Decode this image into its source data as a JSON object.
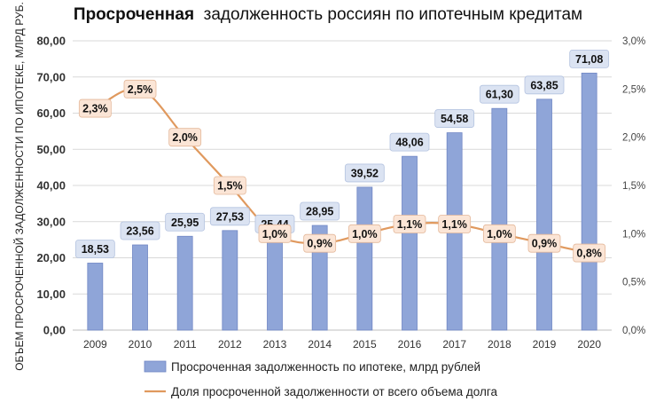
{
  "chart_data": {
    "type": "bar",
    "title_bold": "Просроченная",
    "title_rest": "задолженность россиян по ипотечным кредитам",
    "ylabel": "ОБЪЕМ ПРОСРОЧЕННОЙ ЗАДОЛЖЕННОСТИ ПО ИПОТЕКЕ, МЛРД РУБ.",
    "categories": [
      "2009",
      "2010",
      "2011",
      "2012",
      "2013",
      "2014",
      "2015",
      "2016",
      "2017",
      "2018",
      "2019",
      "2020"
    ],
    "series": [
      {
        "name": "Просроченная задолженность по ипотеке, млрд рублей",
        "type": "bar",
        "axis": "left",
        "values": [
          18.53,
          23.56,
          25.95,
          27.53,
          25.44,
          28.95,
          39.52,
          48.06,
          54.58,
          61.3,
          63.85,
          71.08
        ],
        "labels": [
          "18,53",
          "23,56",
          "25,95",
          "27,53",
          "25,44",
          "28,95",
          "39,52",
          "48,06",
          "54,58",
          "61,30",
          "63,85",
          "71,08"
        ],
        "color": "#8fa5d8"
      },
      {
        "name": "Доля просроченной задолженности от всего объема долга",
        "type": "line",
        "axis": "right",
        "values": [
          2.3,
          2.5,
          2.0,
          1.5,
          1.0,
          0.9,
          1.0,
          1.1,
          1.1,
          1.0,
          0.9,
          0.8
        ],
        "labels": [
          "2,3%",
          "2,5%",
          "2,0%",
          "1,5%",
          "1,0%",
          "0,9%",
          "1,0%",
          "1,1%",
          "1,1%",
          "1,0%",
          "0,9%",
          "0,8%"
        ],
        "color": "#e0995e"
      }
    ],
    "left_axis": {
      "ylim": [
        0,
        80
      ],
      "ticks": [
        "0,00",
        "10,00",
        "20,00",
        "30,00",
        "40,00",
        "50,00",
        "60,00",
        "70,00",
        "80,00"
      ]
    },
    "right_axis": {
      "ylim": [
        0,
        3
      ],
      "ticks": [
        "0,0%",
        "0,5%",
        "1,0%",
        "1,5%",
        "2,0%",
        "2,5%",
        "3,0%"
      ]
    },
    "grid": true,
    "legend_position": "bottom"
  }
}
